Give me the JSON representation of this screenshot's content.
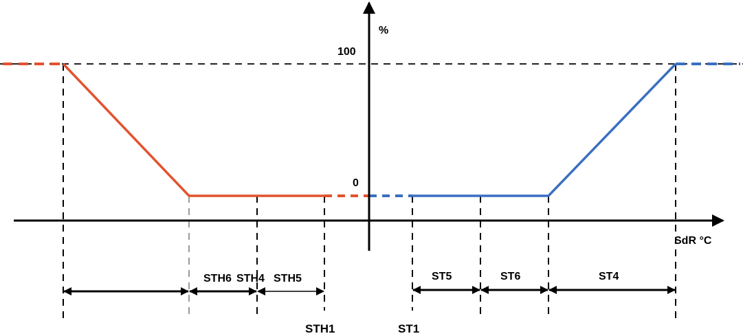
{
  "axes": {
    "y_label": "%",
    "x_label": "SdR °C",
    "tick_100": "100",
    "tick_0": "0"
  },
  "colors": {
    "heating": "#e2522e",
    "cooling": "#3a6fc0",
    "guides": "#000000"
  },
  "ranges": {
    "sth6": "STH6",
    "sth4": "STH4",
    "sth5": "STH5",
    "st5": "ST5",
    "st6": "ST6",
    "st4": "ST4"
  },
  "points": {
    "sth1": "STH1",
    "st1": "ST1"
  }
}
